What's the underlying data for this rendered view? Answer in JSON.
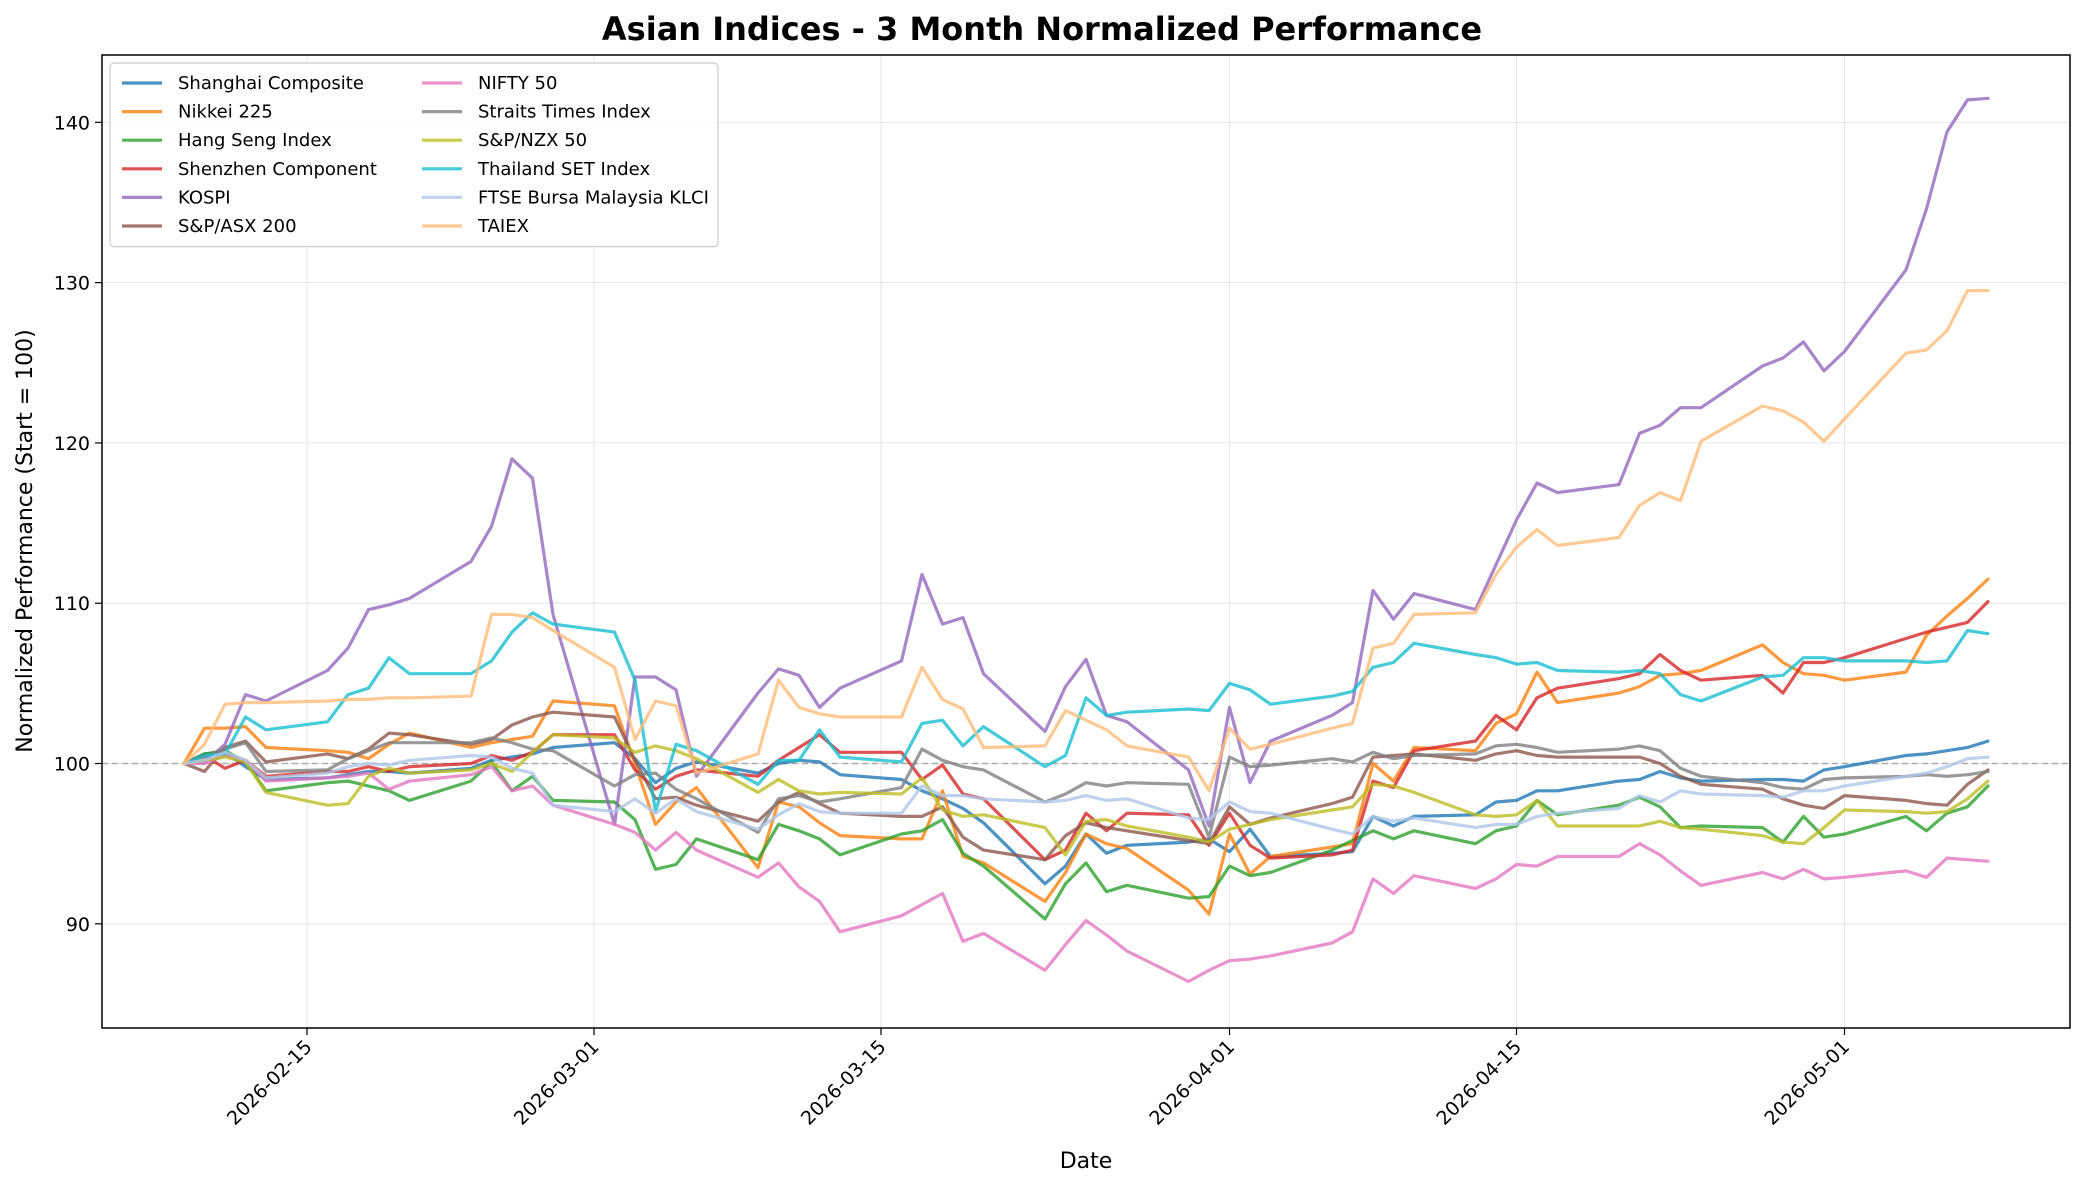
{
  "chart_data": {
    "type": "line",
    "title": "Asian Indices - 3 Month Normalized Performance",
    "xlabel": "Date",
    "ylabel": "Normalized Performance (Start = 100)",
    "xlim": [
      "2026-02-05",
      "2026-05-12"
    ],
    "ylim": [
      83.5,
      144.2
    ],
    "x_ticks": [
      "2026-02-15",
      "2026-03-01",
      "2026-03-15",
      "2026-04-01",
      "2026-04-15",
      "2026-05-01"
    ],
    "y_ticks": [
      90,
      100,
      110,
      120,
      130,
      140
    ],
    "grid": true,
    "legend_position": "top-left",
    "legend_columns": 2,
    "reference_line": {
      "y": 100,
      "style": "dashed",
      "color": "#aaaaaa"
    },
    "x": [
      "2026-02-09",
      "2026-02-10",
      "2026-02-11",
      "2026-02-12",
      "2026-02-13",
      "2026-02-16",
      "2026-02-17",
      "2026-02-18",
      "2026-02-19",
      "2026-02-20",
      "2026-02-23",
      "2026-02-24",
      "2026-02-25",
      "2026-02-26",
      "2026-02-27",
      "2026-03-02",
      "2026-03-03",
      "2026-03-04",
      "2026-03-05",
      "2026-03-06",
      "2026-03-09",
      "2026-03-10",
      "2026-03-11",
      "2026-03-12",
      "2026-03-13",
      "2026-03-16",
      "2026-03-17",
      "2026-03-18",
      "2026-03-19",
      "2026-03-20",
      "2026-03-23",
      "2026-03-24",
      "2026-03-25",
      "2026-03-26",
      "2026-03-27",
      "2026-03-30",
      "2026-03-31",
      "2026-04-01",
      "2026-04-02",
      "2026-04-03",
      "2026-04-06",
      "2026-04-07",
      "2026-04-08",
      "2026-04-09",
      "2026-04-10",
      "2026-04-13",
      "2026-04-14",
      "2026-04-15",
      "2026-04-16",
      "2026-04-17",
      "2026-04-20",
      "2026-04-21",
      "2026-04-22",
      "2026-04-23",
      "2026-04-24",
      "2026-04-27",
      "2026-04-28",
      "2026-04-29",
      "2026-04-30",
      "2026-05-01",
      "2026-05-04",
      "2026-05-05",
      "2026-05-06",
      "2026-05-07",
      "2026-05-08"
    ],
    "series": [
      {
        "name": "Shanghai Composite",
        "color": "#1f77b4",
        "values": [
          100,
          100.6,
          100.7,
          99.8,
          99,
          99.1,
          99.3,
          99.5,
          99.5,
          99.4,
          99.7,
          100.2,
          100.4,
          100.6,
          101,
          101.3,
          100.3,
          98.8,
          99.7,
          100.1,
          99.4,
          100,
          100.2,
          100.1,
          99.3,
          99,
          98.3,
          97.8,
          97.2,
          96.3,
          92.5,
          93.6,
          95.6,
          94.4,
          94.9,
          95.1,
          95.3,
          94.5,
          95.9,
          94.2,
          94.4,
          94.5,
          96.7,
          96.1,
          96.7,
          96.8,
          97.6,
          97.7,
          98.3,
          98.3,
          98.9,
          99,
          99.5,
          99.1,
          98.9,
          99,
          99,
          98.9,
          99.6,
          99.8,
          100.5,
          100.6,
          100.8,
          101,
          101.4
        ]
      },
      {
        "name": "Nikkei 225",
        "color": "#ff7f0e",
        "values": [
          100,
          102.2,
          102.2,
          102.3,
          101,
          100.8,
          100.7,
          100.3,
          101.2,
          101.9,
          101,
          101.3,
          101.5,
          101.7,
          103.9,
          103.6,
          100,
          96.2,
          97.6,
          98.5,
          93.5,
          97.6,
          97.3,
          96.3,
          95.5,
          95.3,
          95.3,
          98.3,
          94.2,
          93.8,
          91.4,
          93.2,
          95.6,
          95,
          94.7,
          92.1,
          90.6,
          95.6,
          93.1,
          94.2,
          94.8,
          95,
          100,
          98.9,
          101,
          100.8,
          102.5,
          103.1,
          105.7,
          103.8,
          104.4,
          104.8,
          105.5,
          105.6,
          105.8,
          107.4,
          106.3,
          105.6,
          105.5,
          105.2,
          105.7,
          108,
          109.2,
          110.3,
          111.5
        ]
      },
      {
        "name": "Hang Seng Index",
        "color": "#2ca02c",
        "values": [
          100,
          100.6,
          100.8,
          100.1,
          98.3,
          98.8,
          98.9,
          98.6,
          98.3,
          97.7,
          98.9,
          100.1,
          98.3,
          99.2,
          97.7,
          97.6,
          96.5,
          93.4,
          93.7,
          95.3,
          94,
          96.2,
          95.8,
          95.3,
          94.3,
          95.6,
          95.8,
          96.5,
          94.4,
          93.6,
          90.3,
          92.5,
          93.8,
          92,
          92.4,
          91.6,
          91.7,
          93.6,
          93,
          93.2,
          94.6,
          95.2,
          95.8,
          95.3,
          95.8,
          95,
          95.8,
          96.1,
          97.7,
          96.8,
          97.4,
          97.9,
          97.3,
          96,
          96.1,
          96,
          95.1,
          96.7,
          95.4,
          95.6,
          96.7,
          95.8,
          96.9,
          97.3,
          98.6
        ]
      },
      {
        "name": "Shenzhen Component",
        "color": "#d62728",
        "values": [
          100,
          100.5,
          99.7,
          100.2,
          99.2,
          99.5,
          99.5,
          99.8,
          99.5,
          99.8,
          100,
          100.5,
          100.2,
          100.7,
          101.8,
          101.8,
          99.6,
          98.4,
          99.2,
          99.6,
          99.2,
          100.2,
          101,
          101.8,
          100.7,
          100.7,
          99,
          99.9,
          98.1,
          97.8,
          94,
          94.6,
          96.9,
          95.8,
          96.9,
          96.8,
          94.9,
          96.9,
          94.9,
          94.1,
          94.3,
          94.6,
          98.9,
          98.5,
          100.8,
          101.4,
          103,
          102.1,
          104.1,
          104.7,
          105.3,
          105.6,
          106.8,
          105.8,
          105.2,
          105.5,
          104.4,
          106.3,
          106.3,
          106.6,
          107.8,
          108.2,
          108.5,
          108.8,
          110.1
        ]
      },
      {
        "name": "KOSPI",
        "color": "#9467bd",
        "values": [
          100,
          100.1,
          101.2,
          104.3,
          103.9,
          105.8,
          107.2,
          109.6,
          109.9,
          110.3,
          112.6,
          114.8,
          119,
          117.8,
          109.3,
          96.2,
          105.4,
          105.4,
          104.6,
          99.2,
          104.4,
          105.9,
          105.5,
          103.5,
          104.7,
          106.4,
          111.8,
          108.7,
          109.1,
          105.6,
          102,
          104.8,
          106.5,
          103,
          102.6,
          99.6,
          96.1,
          103.5,
          98.8,
          101.4,
          103,
          103.8,
          110.8,
          109,
          110.6,
          109.6,
          112.4,
          115.2,
          117.5,
          116.9,
          117.4,
          120.6,
          121.1,
          122.2,
          122.2,
          124.8,
          125.3,
          126.3,
          124.5,
          125.7,
          130.8,
          134.6,
          139.4,
          141.4,
          141.5
        ]
      },
      {
        "name": "S&P/ASX 200",
        "color": "#8c564b",
        "values": [
          100,
          99.5,
          101,
          101.4,
          100.1,
          100.6,
          100.3,
          100.9,
          101.9,
          101.8,
          101.2,
          101.5,
          102.4,
          102.9,
          103.2,
          102.9,
          100.2,
          97.8,
          97.9,
          97.4,
          96.4,
          97.6,
          98.2,
          97.5,
          96.9,
          96.7,
          96.7,
          97.3,
          95.4,
          94.6,
          94,
          95.5,
          96.3,
          96,
          95.8,
          95.2,
          95,
          97.3,
          96.2,
          96.6,
          97.5,
          97.9,
          100.4,
          100.5,
          100.6,
          100.2,
          100.6,
          100.8,
          100.5,
          100.4,
          100.4,
          100.4,
          100,
          99.2,
          98.7,
          98.4,
          97.8,
          97.4,
          97.2,
          98,
          97.7,
          97.5,
          97.4,
          98.7,
          99.6
        ]
      },
      {
        "name": "NIFTY 50",
        "color": "#e377c2",
        "values": [
          100,
          100,
          100.5,
          100.2,
          98.9,
          99.1,
          99.2,
          99.4,
          98.4,
          98.9,
          99.3,
          99.8,
          98.3,
          98.6,
          97.4,
          96.2,
          95.7,
          94.6,
          95.7,
          94.6,
          92.9,
          93.8,
          92.3,
          91.4,
          89.5,
          90.5,
          91.2,
          91.9,
          88.9,
          89.4,
          87.1,
          88.7,
          90.2,
          89.3,
          88.3,
          86.4,
          87.1,
          87.7,
          87.8,
          88,
          88.8,
          89.5,
          92.8,
          91.9,
          93,
          92.2,
          92.8,
          93.7,
          93.6,
          94.2,
          94.2,
          95,
          94.3,
          93.3,
          92.4,
          93.2,
          92.8,
          93.4,
          92.8,
          92.9,
          93.3,
          92.9,
          94.1,
          94,
          93.9
        ]
      },
      {
        "name": "Straits Times Index",
        "color": "#7f7f7f",
        "values": [
          100,
          100.4,
          100.9,
          101.3,
          99.5,
          99.6,
          100.3,
          100.8,
          101.3,
          101.3,
          101.3,
          101.6,
          101.3,
          100.9,
          100.8,
          98.6,
          99.3,
          99.4,
          98.4,
          97.8,
          95.7,
          97.8,
          98,
          97.6,
          97.8,
          98.5,
          100.9,
          100.2,
          99.8,
          99.6,
          97.6,
          98.1,
          98.8,
          98.6,
          98.8,
          98.7,
          95.4,
          100.4,
          99.8,
          99.9,
          100.3,
          100.1,
          100.7,
          100.3,
          100.5,
          100.6,
          101.1,
          101.2,
          101,
          100.7,
          100.9,
          101.1,
          100.8,
          99.7,
          99.2,
          98.8,
          98.5,
          98.4,
          99,
          99.1,
          99.2,
          99.3,
          99.2,
          99.3,
          99.5
        ]
      },
      {
        "name": "S&P/NZX 50",
        "color": "#bcbd22",
        "values": [
          100,
          100.2,
          100.4,
          100.1,
          98.2,
          97.4,
          97.5,
          99.2,
          99.7,
          99.4,
          99.6,
          100,
          99.5,
          100.7,
          101.8,
          101.6,
          100.7,
          101.1,
          100.8,
          100.3,
          98.2,
          99,
          98.3,
          98.1,
          98.2,
          98.1,
          99.1,
          97.1,
          96.7,
          96.8,
          96,
          94.3,
          96.4,
          96.5,
          96.1,
          95.4,
          95.1,
          95.9,
          96.2,
          96.5,
          97.1,
          97.3,
          98.7,
          98.6,
          98.2,
          96.8,
          96.7,
          96.8,
          97.7,
          96.1,
          96.1,
          96.1,
          96.4,
          96,
          95.9,
          95.5,
          95.1,
          95,
          96,
          97.1,
          97,
          96.9,
          97,
          97.8,
          98.9
        ]
      },
      {
        "name": "Thailand SET Index",
        "color": "#17becf",
        "values": [
          100,
          100.5,
          100.6,
          102.9,
          102.1,
          102.6,
          104.3,
          104.7,
          106.6,
          105.6,
          105.6,
          106.4,
          108.2,
          109.4,
          108.7,
          108.2,
          105.2,
          97,
          101.2,
          100.8,
          98.7,
          100.2,
          100.2,
          102.1,
          100.4,
          100.1,
          102.5,
          102.7,
          101.1,
          102.3,
          99.8,
          100.5,
          104.1,
          103,
          103.2,
          103.4,
          103.3,
          105,
          104.6,
          103.7,
          104.2,
          104.5,
          106,
          106.3,
          107.5,
          106.8,
          106.6,
          106.2,
          106.3,
          105.8,
          105.7,
          105.8,
          105.6,
          104.3,
          103.9,
          105.4,
          105.5,
          106.6,
          106.6,
          106.4,
          106.4,
          106.3,
          106.4,
          108.3,
          108.1
        ]
      },
      {
        "name": "FTSE Bursa Malaysia KLCI",
        "color": "#aec7e8",
        "values": [
          100,
          100.2,
          100.7,
          100.2,
          99.1,
          99.4,
          99.8,
          100,
          99.9,
          100.2,
          100.5,
          100.4,
          99.7,
          99.4,
          97.4,
          97,
          97.8,
          96.9,
          97.8,
          97,
          95.9,
          96.8,
          97.5,
          97,
          96.9,
          96.9,
          98.6,
          98,
          98,
          97.8,
          97.6,
          97.7,
          98,
          97.7,
          97.8,
          96.6,
          96.5,
          97.6,
          97,
          96.9,
          95.9,
          95.6,
          96.7,
          96.4,
          96.6,
          96,
          96.2,
          96.2,
          96.7,
          96.9,
          97.2,
          98,
          97.6,
          98.3,
          98.1,
          98,
          97.9,
          98.3,
          98.3,
          98.6,
          99.2,
          99.4,
          99.8,
          100.3,
          100.4
        ]
      },
      {
        "name": "TAIEX",
        "color": "#ffbb78",
        "values": [
          100,
          101.2,
          103.7,
          103.8,
          103.8,
          103.9,
          104,
          104,
          104.1,
          104.1,
          104.2,
          109.3,
          109.3,
          109.1,
          108.3,
          106,
          101.5,
          103.9,
          103.6,
          99.4,
          100.6,
          105.2,
          103.5,
          103.1,
          102.9,
          102.9,
          106,
          104,
          103.4,
          101,
          101.1,
          103.3,
          102.7,
          102.1,
          101.1,
          100.4,
          98.3,
          102.2,
          100.9,
          101.2,
          102.2,
          102.5,
          107.2,
          107.5,
          109.3,
          109.4,
          111.8,
          113.5,
          114.6,
          113.6,
          114.1,
          116.1,
          116.9,
          116.4,
          120.1,
          122.3,
          122,
          121.3,
          120.1,
          121.5,
          125.6,
          125.8,
          127,
          129.5,
          129.5
        ]
      }
    ]
  }
}
